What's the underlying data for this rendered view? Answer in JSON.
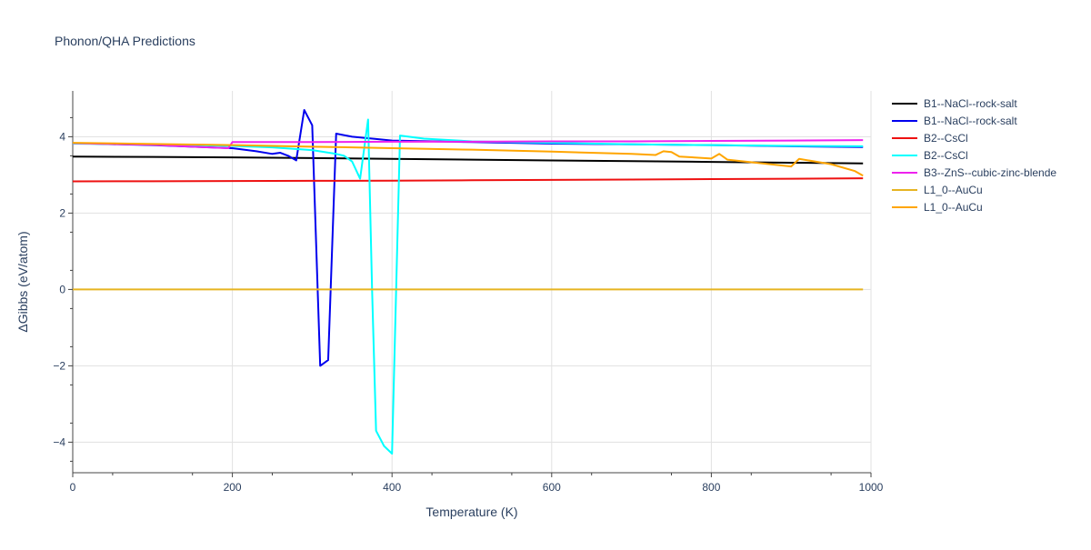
{
  "chart_data": {
    "type": "line",
    "title": "Phonon/QHA Predictions",
    "xlabel": "Temperature (K)",
    "ylabel": "ΔGibbs (eV/atom)",
    "xlim": [
      0,
      1000
    ],
    "ylim": [
      -4.8,
      5.2
    ],
    "xticks": [
      0,
      200,
      400,
      600,
      800,
      1000
    ],
    "yticks": [
      -4,
      -2,
      0,
      2,
      4
    ],
    "grid": true,
    "legend_position": "right",
    "series": [
      {
        "name": "B1--NaCl--rock-salt",
        "color": "#000000",
        "x": [
          0,
          100,
          200,
          300,
          400,
          500,
          600,
          700,
          800,
          900,
          990
        ],
        "y": [
          3.48,
          3.47,
          3.46,
          3.44,
          3.42,
          3.4,
          3.38,
          3.36,
          3.34,
          3.32,
          3.3
        ]
      },
      {
        "name": "B1--NaCl--rock-salt",
        "color": "#0000ee",
        "x": [
          0,
          100,
          150,
          200,
          230,
          250,
          260,
          270,
          280,
          290,
          300,
          310,
          320,
          330,
          350,
          380,
          400,
          500,
          600,
          700,
          800,
          900,
          990
        ],
        "y": [
          3.83,
          3.78,
          3.74,
          3.7,
          3.62,
          3.55,
          3.58,
          3.5,
          3.38,
          4.7,
          4.3,
          -2.0,
          -1.85,
          4.08,
          4.0,
          3.94,
          3.9,
          3.86,
          3.82,
          3.8,
          3.78,
          3.75,
          3.73
        ]
      },
      {
        "name": "B2--CsCl",
        "color": "#ee1111",
        "x": [
          0,
          100,
          200,
          300,
          400,
          500,
          600,
          700,
          800,
          900,
          990
        ],
        "y": [
          2.83,
          2.835,
          2.84,
          2.845,
          2.85,
          2.86,
          2.87,
          2.88,
          2.89,
          2.9,
          2.91
        ]
      },
      {
        "name": "B2--CsCl",
        "color": "#00ffff",
        "x": [
          0,
          100,
          200,
          250,
          300,
          330,
          340,
          350,
          360,
          370,
          375,
          380,
          390,
          400,
          410,
          440,
          500,
          600,
          700,
          800,
          900,
          990
        ],
        "y": [
          3.82,
          3.8,
          3.76,
          3.72,
          3.65,
          3.55,
          3.5,
          3.35,
          2.9,
          4.45,
          0.0,
          -3.7,
          -4.1,
          -4.3,
          4.03,
          3.95,
          3.88,
          3.84,
          3.8,
          3.78,
          3.76,
          3.75
        ]
      },
      {
        "name": "B3--ZnS--cubic-zinc-blende",
        "color": "#ee22ee",
        "x": [
          0,
          100,
          150,
          195,
          200,
          300,
          400,
          500,
          600,
          700,
          800,
          900,
          990
        ],
        "y": [
          3.83,
          3.79,
          3.74,
          3.7,
          3.86,
          3.86,
          3.87,
          3.87,
          3.88,
          3.88,
          3.89,
          3.9,
          3.91
        ]
      },
      {
        "name": "L1_0--AuCu",
        "color": "#e6b422",
        "x": [
          0,
          200,
          400,
          600,
          800,
          990
        ],
        "y": [
          0,
          0,
          0,
          0,
          0,
          0
        ]
      },
      {
        "name": "L1_0--AuCu",
        "color": "#ffa500",
        "x": [
          0,
          100,
          200,
          300,
          400,
          500,
          600,
          700,
          730,
          740,
          750,
          760,
          800,
          810,
          820,
          900,
          910,
          950,
          980,
          990
        ],
        "y": [
          3.84,
          3.81,
          3.78,
          3.74,
          3.7,
          3.66,
          3.61,
          3.55,
          3.52,
          3.62,
          3.6,
          3.48,
          3.43,
          3.55,
          3.4,
          3.22,
          3.42,
          3.28,
          3.1,
          2.98
        ]
      }
    ]
  }
}
